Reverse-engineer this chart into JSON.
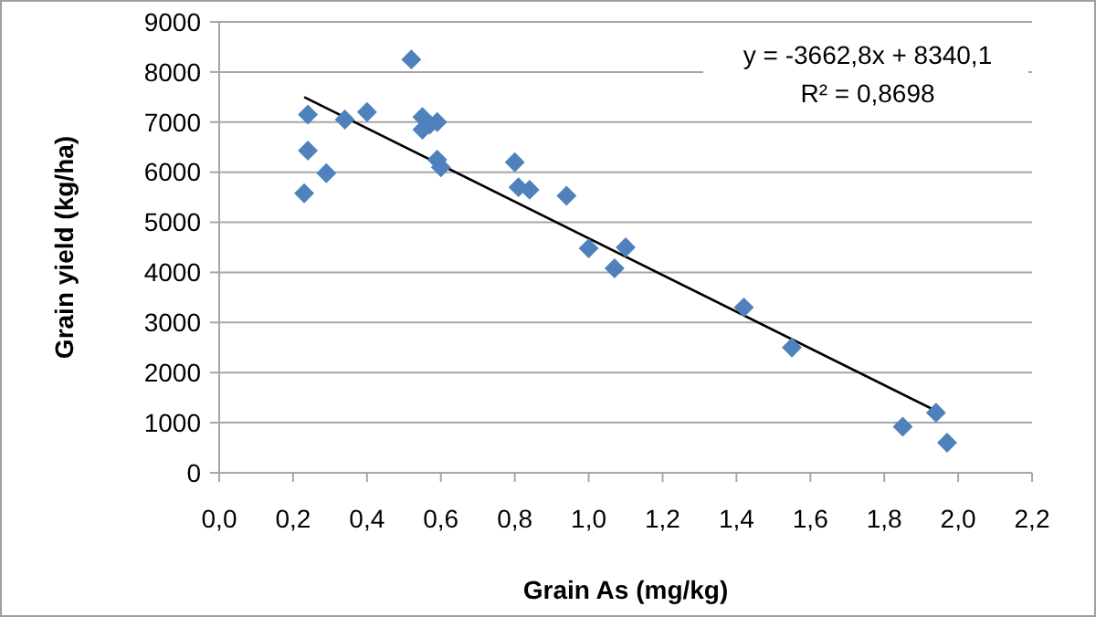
{
  "chart_data": {
    "type": "scatter",
    "xlabel": "Grain As (mg/kg)",
    "ylabel": "Grain yield (kg/ha)",
    "series": [
      {
        "color": "#4f81bd",
        "marker": "diamond",
        "x": [
          0.23,
          0.24,
          0.24,
          0.29,
          0.34,
          0.4,
          0.52,
          0.55,
          0.55,
          0.57,
          0.59,
          0.59,
          0.6,
          0.8,
          0.81,
          0.84,
          0.94,
          1.0,
          1.07,
          1.1,
          1.42,
          1.55,
          1.85,
          1.94,
          1.97
        ],
        "values": [
          5580,
          7150,
          6430,
          5980,
          7050,
          7200,
          8250,
          7100,
          6850,
          6950,
          7000,
          6250,
          6100,
          6200,
          5700,
          5650,
          5530,
          4480,
          4080,
          4500,
          3300,
          2500,
          920,
          1200,
          600
        ]
      },
      {
        "type": "line",
        "color": "#000000",
        "marker": "none",
        "line_style": "solid",
        "x": [
          0.23,
          1.95
        ],
        "values": [
          7500,
          1200
        ]
      }
    ],
    "annotations": [
      "y = -3662,8x + 8340,1",
      "R² = 0,8698"
    ],
    "xlim": [
      0,
      2.2
    ],
    "xticks": [
      {
        "value": 0,
        "label": "0,0"
      },
      {
        "value": 0.2,
        "label": "0,2"
      },
      {
        "value": 0.4,
        "label": "0,4"
      },
      {
        "value": 0.6,
        "label": "0,6"
      },
      {
        "value": 0.8,
        "label": "0,8"
      },
      {
        "value": 1,
        "label": "1,0"
      },
      {
        "value": 1.2,
        "label": "1,2"
      },
      {
        "value": 1.4,
        "label": "1,4"
      },
      {
        "value": 1.6,
        "label": "1,6"
      },
      {
        "value": 1.8,
        "label": "1,8"
      },
      {
        "value": 2,
        "label": "2,0"
      },
      {
        "value": 2.2,
        "label": "2,2"
      }
    ],
    "ylim": [
      0,
      9000
    ],
    "yticks": [
      0,
      1000,
      2000,
      3000,
      4000,
      5000,
      6000,
      7000,
      8000,
      9000
    ],
    "grid": "y"
  }
}
